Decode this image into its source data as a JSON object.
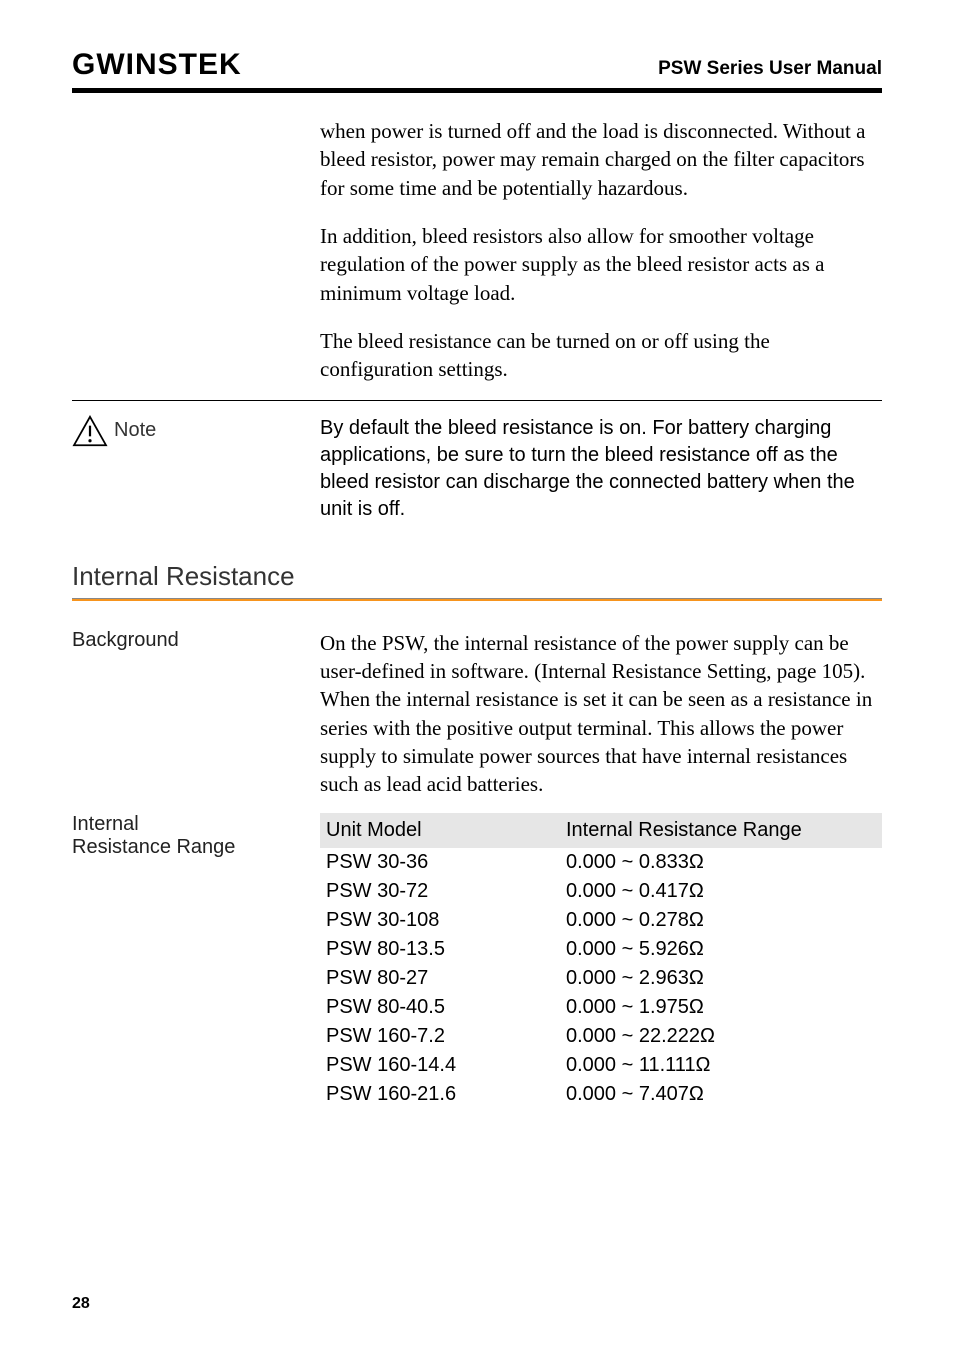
{
  "header": {
    "brand": "GWINSTEK",
    "manual_title": "PSW Series User Manual"
  },
  "intro_paragraphs": [
    "when power is turned off and the load is disconnected. Without a bleed resistor, power may remain charged on the filter capacitors for some time and be potentially hazardous.",
    "In addition, bleed resistors also allow for smoother voltage regulation of the power supply as the bleed resistor acts as a minimum voltage load.",
    "The bleed resistance can be turned on or off using the configuration settings."
  ],
  "note": {
    "label": "Note",
    "text": "By default the bleed resistance is on. For battery charging applications, be sure to turn the bleed resistance off as the bleed resistor can discharge the connected battery when the unit is off."
  },
  "section": {
    "heading": "Internal Resistance"
  },
  "background": {
    "label": "Background",
    "text": "On the PSW, the internal resistance of the power supply can be user-defined in software. (Internal Resistance Setting, page 105). When the internal resistance is set it can be seen as a resistance in series with the positive output terminal. This allows the power supply to simulate power sources that have internal resistances such as lead acid batteries."
  },
  "table": {
    "label_line1": "Internal",
    "label_line2": "Resistance Range",
    "head_col1": "Unit Model",
    "head_col2": "Internal Resistance Range",
    "rows": [
      {
        "model": "PSW 30-36",
        "range": "0.000 ~ 0.833Ω"
      },
      {
        "model": "PSW 30-72",
        "range": "0.000 ~ 0.417Ω"
      },
      {
        "model": "PSW 30-108",
        "range": "0.000 ~ 0.278Ω"
      },
      {
        "model": "PSW 80-13.5",
        "range": "0.000 ~ 5.926Ω"
      },
      {
        "model": "PSW 80-27",
        "range": "0.000 ~ 2.963Ω"
      },
      {
        "model": "PSW 80-40.5",
        "range": "0.000 ~ 1.975Ω"
      },
      {
        "model": "PSW 160-7.2",
        "range": "0.000 ~ 22.222Ω"
      },
      {
        "model": "PSW 160-14.4",
        "range": "0.000 ~ 11.111Ω"
      },
      {
        "model": "PSW 160-21.6",
        "range": "0.000 ~ 7.407Ω"
      }
    ]
  },
  "page_number": "28",
  "colors": {
    "orange": "#f7941d",
    "gray_bg": "#e6e6e6"
  }
}
